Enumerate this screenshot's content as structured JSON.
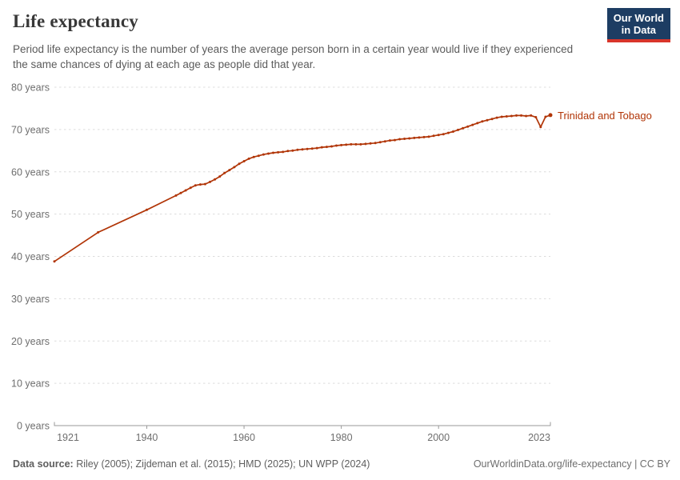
{
  "header": {
    "title": "Life expectancy",
    "subtitle": "Period life expectancy is the number of years the average person born in a certain year would live if they experienced the same chances of dying at each age as people did that year."
  },
  "logo": {
    "line1": "Our World",
    "line2": "in Data",
    "bg_color": "#1d3d63",
    "accent_color": "#d8352a"
  },
  "chart_data": {
    "type": "line",
    "title": "Life expectancy",
    "xlabel": "",
    "ylabel": "",
    "xlim": [
      1921,
      2023
    ],
    "ylim": [
      0,
      80
    ],
    "xticks": [
      1921,
      1940,
      1960,
      1980,
      2000,
      2023
    ],
    "yticks": [
      0,
      10,
      20,
      30,
      40,
      50,
      60,
      70,
      80
    ],
    "ytick_suffix": " years",
    "grid": "horizontal-dashed",
    "line_color": "#b13507",
    "gridline_color": "#dcdcdc",
    "axis_color": "#9a9a9a",
    "tick_label_color": "#6e6e6e",
    "series": [
      {
        "name": "Trinidad and Tobago",
        "points": [
          [
            1921,
            38.8
          ],
          [
            1930,
            45.7
          ],
          [
            1940,
            51.0
          ],
          [
            1946,
            54.4
          ],
          [
            1947,
            55.0
          ],
          [
            1948,
            55.6
          ],
          [
            1949,
            56.2
          ],
          [
            1950,
            56.8
          ],
          [
            1951,
            57.0
          ],
          [
            1952,
            57.1
          ],
          [
            1953,
            57.6
          ],
          [
            1954,
            58.2
          ],
          [
            1955,
            58.9
          ],
          [
            1956,
            59.7
          ],
          [
            1957,
            60.4
          ],
          [
            1958,
            61.1
          ],
          [
            1959,
            61.9
          ],
          [
            1960,
            62.5
          ],
          [
            1961,
            63.1
          ],
          [
            1962,
            63.5
          ],
          [
            1963,
            63.8
          ],
          [
            1964,
            64.1
          ],
          [
            1965,
            64.3
          ],
          [
            1966,
            64.5
          ],
          [
            1967,
            64.6
          ],
          [
            1968,
            64.7
          ],
          [
            1969,
            64.9
          ],
          [
            1970,
            65.0
          ],
          [
            1971,
            65.2
          ],
          [
            1972,
            65.3
          ],
          [
            1973,
            65.4
          ],
          [
            1974,
            65.5
          ],
          [
            1975,
            65.6
          ],
          [
            1976,
            65.8
          ],
          [
            1977,
            65.9
          ],
          [
            1978,
            66.0
          ],
          [
            1979,
            66.2
          ],
          [
            1980,
            66.3
          ],
          [
            1981,
            66.4
          ],
          [
            1982,
            66.5
          ],
          [
            1983,
            66.5
          ],
          [
            1984,
            66.5
          ],
          [
            1985,
            66.6
          ],
          [
            1986,
            66.7
          ],
          [
            1987,
            66.8
          ],
          [
            1988,
            67.0
          ],
          [
            1989,
            67.2
          ],
          [
            1990,
            67.4
          ],
          [
            1991,
            67.5
          ],
          [
            1992,
            67.7
          ],
          [
            1993,
            67.8
          ],
          [
            1994,
            67.9
          ],
          [
            1995,
            68.0
          ],
          [
            1996,
            68.1
          ],
          [
            1997,
            68.2
          ],
          [
            1998,
            68.3
          ],
          [
            1999,
            68.5
          ],
          [
            2000,
            68.7
          ],
          [
            2001,
            68.9
          ],
          [
            2002,
            69.2
          ],
          [
            2003,
            69.5
          ],
          [
            2004,
            69.9
          ],
          [
            2005,
            70.3
          ],
          [
            2006,
            70.7
          ],
          [
            2007,
            71.1
          ],
          [
            2008,
            71.5
          ],
          [
            2009,
            71.9
          ],
          [
            2010,
            72.2
          ],
          [
            2011,
            72.5
          ],
          [
            2012,
            72.8
          ],
          [
            2013,
            73.0
          ],
          [
            2014,
            73.1
          ],
          [
            2015,
            73.2
          ],
          [
            2016,
            73.3
          ],
          [
            2017,
            73.3
          ],
          [
            2018,
            73.2
          ],
          [
            2019,
            73.3
          ],
          [
            2020,
            72.9
          ],
          [
            2021,
            70.6
          ],
          [
            2022,
            73.0
          ],
          [
            2023,
            73.4
          ]
        ]
      }
    ]
  },
  "footer": {
    "source_label": "Data source:",
    "source_text": " Riley (2005); Zijdeman et al. (2015); HMD (2025); UN WPP (2024)",
    "link": "OurWorldinData.org/life-expectancy | CC BY"
  }
}
